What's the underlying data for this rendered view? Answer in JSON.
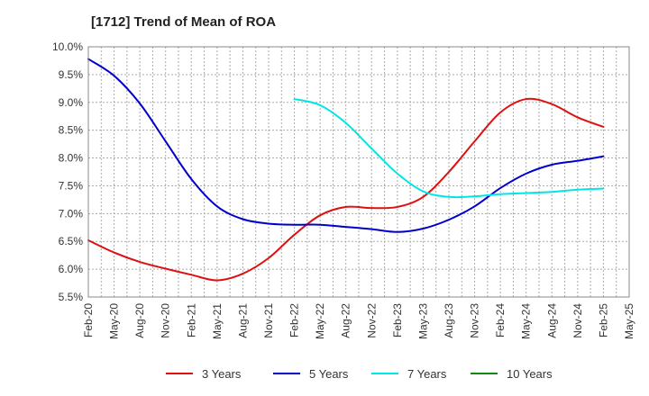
{
  "chart_data": {
    "type": "line",
    "title": "[1712]  Trend of Mean of ROA",
    "xlabel": "",
    "ylabel": "",
    "ylim": [
      5.5,
      10.0
    ],
    "y_ticks": [
      "10.0%",
      "9.5%",
      "9.0%",
      "8.5%",
      "8.0%",
      "7.5%",
      "7.0%",
      "6.5%",
      "6.0%",
      "5.5%"
    ],
    "y_tick_values": [
      10.0,
      9.5,
      9.0,
      8.5,
      8.0,
      7.5,
      7.0,
      6.5,
      6.0,
      5.5
    ],
    "categories": [
      "Feb-20",
      "May-20",
      "Aug-20",
      "Nov-20",
      "Feb-21",
      "May-21",
      "Aug-21",
      "Nov-21",
      "Feb-22",
      "May-22",
      "Aug-22",
      "Nov-22",
      "Feb-23",
      "May-23",
      "Aug-23",
      "Nov-23",
      "Feb-24",
      "May-24",
      "Aug-24",
      "Nov-24",
      "Feb-25",
      "May-25"
    ],
    "grid": true,
    "legend_position": "bottom",
    "series": [
      {
        "name": "3 Years",
        "color": "#dd1111",
        "values": [
          6.52,
          6.3,
          6.13,
          6.01,
          5.9,
          5.8,
          5.92,
          6.2,
          6.62,
          6.97,
          7.12,
          7.1,
          7.12,
          7.3,
          7.75,
          8.3,
          8.82,
          9.06,
          8.97,
          8.73,
          8.56,
          null
        ]
      },
      {
        "name": "5 Years",
        "color": "#0000cc",
        "values": [
          9.78,
          9.48,
          8.98,
          8.3,
          7.62,
          7.13,
          6.9,
          6.82,
          6.8,
          6.8,
          6.76,
          6.72,
          6.67,
          6.73,
          6.89,
          7.13,
          7.46,
          7.72,
          7.88,
          7.95,
          8.03,
          null
        ]
      },
      {
        "name": "7 Years",
        "color": "#00e5e5",
        "values": [
          null,
          null,
          null,
          null,
          null,
          null,
          null,
          null,
          9.06,
          8.95,
          8.63,
          8.17,
          7.72,
          7.4,
          7.3,
          7.31,
          7.35,
          7.37,
          7.39,
          7.43,
          7.45,
          null
        ]
      },
      {
        "name": "10 Years",
        "color": "#118811",
        "values": [
          null,
          null,
          null,
          null,
          null,
          null,
          null,
          null,
          null,
          null,
          null,
          null,
          null,
          null,
          null,
          null,
          null,
          null,
          null,
          null,
          null,
          null
        ]
      }
    ]
  }
}
